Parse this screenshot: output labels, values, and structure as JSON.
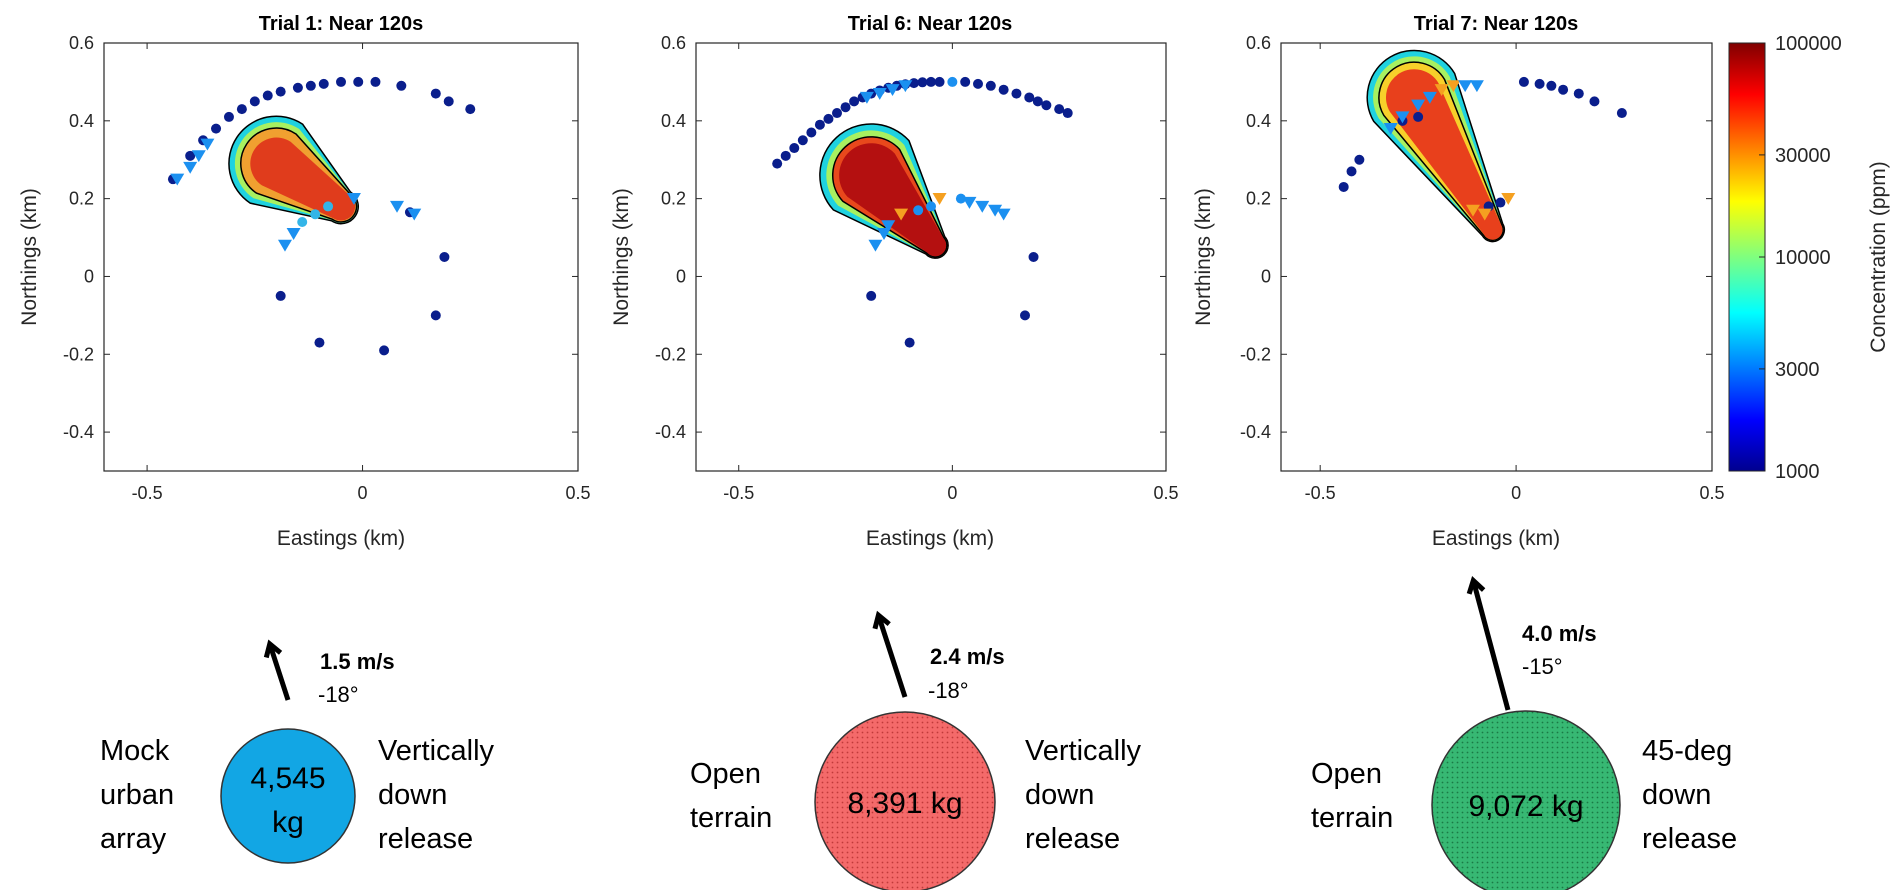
{
  "chart_data": [
    {
      "type": "scatter",
      "title": "Trial 1: Near 120s",
      "xlabel": "Eastings (km)",
      "ylabel": "Northings (km)",
      "xlim": [
        -0.6,
        0.5
      ],
      "ylim": [
        -0.5,
        0.6
      ],
      "xticks": [
        "-0.5",
        "0",
        "0.5"
      ],
      "yticks": [
        "-0.4",
        "-0.2",
        "0",
        "0.2",
        "0.4",
        "0.6"
      ],
      "plume": {
        "source": [
          -0.05,
          0.18
        ],
        "tip": [
          -0.2,
          0.29
        ],
        "source_width": 0.04,
        "tip_width": 0.11,
        "core_shrink": 0.08,
        "core_color": "#e03c1c",
        "mid_color": "#f0a030"
      },
      "circles": [
        {
          "x": -0.44,
          "y": 0.25,
          "c": "#0a1e8c"
        },
        {
          "x": -0.4,
          "y": 0.31,
          "c": "#0a1e8c"
        },
        {
          "x": -0.37,
          "y": 0.35,
          "c": "#0a1e8c"
        },
        {
          "x": -0.34,
          "y": 0.38,
          "c": "#0a1e8c"
        },
        {
          "x": -0.31,
          "y": 0.41,
          "c": "#0a1e8c"
        },
        {
          "x": -0.28,
          "y": 0.43,
          "c": "#0a1e8c"
        },
        {
          "x": -0.25,
          "y": 0.45,
          "c": "#0a1e8c"
        },
        {
          "x": -0.22,
          "y": 0.465,
          "c": "#0a1e8c"
        },
        {
          "x": -0.19,
          "y": 0.475,
          "c": "#0a1e8c"
        },
        {
          "x": -0.15,
          "y": 0.485,
          "c": "#0a1e8c"
        },
        {
          "x": -0.12,
          "y": 0.49,
          "c": "#0a1e8c"
        },
        {
          "x": -0.09,
          "y": 0.495,
          "c": "#0a1e8c"
        },
        {
          "x": -0.05,
          "y": 0.5,
          "c": "#0a1e8c"
        },
        {
          "x": -0.01,
          "y": 0.5,
          "c": "#0a1e8c"
        },
        {
          "x": 0.03,
          "y": 0.5,
          "c": "#0a1e8c"
        },
        {
          "x": 0.09,
          "y": 0.49,
          "c": "#0a1e8c"
        },
        {
          "x": 0.17,
          "y": 0.47,
          "c": "#0a1e8c"
        },
        {
          "x": 0.2,
          "y": 0.45,
          "c": "#0a1e8c"
        },
        {
          "x": 0.25,
          "y": 0.43,
          "c": "#0a1e8c"
        },
        {
          "x": 0.11,
          "y": 0.165,
          "c": "#0a1e8c"
        },
        {
          "x": 0.19,
          "y": 0.05,
          "c": "#0a1e8c"
        },
        {
          "x": 0.17,
          "y": -0.1,
          "c": "#0a1e8c"
        },
        {
          "x": 0.05,
          "y": -0.19,
          "c": "#0a1e8c"
        },
        {
          "x": -0.1,
          "y": -0.17,
          "c": "#0a1e8c"
        },
        {
          "x": -0.19,
          "y": -0.05,
          "c": "#0a1e8c"
        },
        {
          "x": -0.14,
          "y": 0.14,
          "c": "#33b5e8"
        },
        {
          "x": -0.11,
          "y": 0.16,
          "c": "#33b5e8"
        },
        {
          "x": -0.08,
          "y": 0.18,
          "c": "#33b5e8"
        }
      ],
      "triangles": [
        {
          "x": -0.43,
          "y": 0.25,
          "c": "#1b90f0"
        },
        {
          "x": -0.4,
          "y": 0.28,
          "c": "#1b90f0"
        },
        {
          "x": -0.38,
          "y": 0.31,
          "c": "#1b90f0"
        },
        {
          "x": -0.36,
          "y": 0.34,
          "c": "#1b90f0"
        },
        {
          "x": -0.18,
          "y": 0.08,
          "c": "#1b90f0"
        },
        {
          "x": -0.16,
          "y": 0.11,
          "c": "#1b90f0"
        },
        {
          "x": -0.02,
          "y": 0.2,
          "c": "#1b90f0"
        },
        {
          "x": 0.08,
          "y": 0.18,
          "c": "#1b90f0"
        },
        {
          "x": 0.12,
          "y": 0.16,
          "c": "#1b90f0"
        }
      ]
    },
    {
      "type": "scatter",
      "title": "Trial 6: Near 120s",
      "xlabel": "Eastings (km)",
      "ylabel": "Northings (km)",
      "xlim": [
        -0.6,
        0.5
      ],
      "ylim": [
        -0.5,
        0.6
      ],
      "xticks": [
        "-0.5",
        "0",
        "0.5"
      ],
      "yticks": [
        "-0.4",
        "-0.2",
        "0",
        "0.2",
        "0.4",
        "0.6"
      ],
      "plume": {
        "source": [
          -0.04,
          0.08
        ],
        "tip": [
          -0.19,
          0.26
        ],
        "source_width": 0.03,
        "tip_width": 0.12,
        "core_shrink": 0.05,
        "core_color": "#b41010",
        "mid_color": "#e8481c"
      },
      "circles": [
        {
          "x": -0.41,
          "y": 0.29,
          "c": "#0a1e8c"
        },
        {
          "x": -0.39,
          "y": 0.31,
          "c": "#0a1e8c"
        },
        {
          "x": -0.37,
          "y": 0.33,
          "c": "#0a1e8c"
        },
        {
          "x": -0.35,
          "y": 0.35,
          "c": "#0a1e8c"
        },
        {
          "x": -0.33,
          "y": 0.37,
          "c": "#0a1e8c"
        },
        {
          "x": -0.31,
          "y": 0.39,
          "c": "#0a1e8c"
        },
        {
          "x": -0.29,
          "y": 0.405,
          "c": "#0a1e8c"
        },
        {
          "x": -0.27,
          "y": 0.42,
          "c": "#0a1e8c"
        },
        {
          "x": -0.25,
          "y": 0.435,
          "c": "#0a1e8c"
        },
        {
          "x": -0.23,
          "y": 0.45,
          "c": "#0a1e8c"
        },
        {
          "x": -0.21,
          "y": 0.46,
          "c": "#0a1e8c"
        },
        {
          "x": -0.19,
          "y": 0.47,
          "c": "#0a1e8c"
        },
        {
          "x": -0.17,
          "y": 0.478,
          "c": "#0a1e8c"
        },
        {
          "x": -0.15,
          "y": 0.485,
          "c": "#0a1e8c"
        },
        {
          "x": -0.13,
          "y": 0.49,
          "c": "#0a1e8c"
        },
        {
          "x": -0.11,
          "y": 0.494,
          "c": "#0a1e8c"
        },
        {
          "x": -0.09,
          "y": 0.497,
          "c": "#0a1e8c"
        },
        {
          "x": -0.07,
          "y": 0.499,
          "c": "#0a1e8c"
        },
        {
          "x": -0.05,
          "y": 0.5,
          "c": "#0a1e8c"
        },
        {
          "x": -0.03,
          "y": 0.5,
          "c": "#0a1e8c"
        },
        {
          "x": 0.0,
          "y": 0.5,
          "c": "#1b90f0"
        },
        {
          "x": 0.03,
          "y": 0.5,
          "c": "#0a1e8c"
        },
        {
          "x": 0.06,
          "y": 0.495,
          "c": "#0a1e8c"
        },
        {
          "x": 0.09,
          "y": 0.49,
          "c": "#0a1e8c"
        },
        {
          "x": 0.12,
          "y": 0.48,
          "c": "#0a1e8c"
        },
        {
          "x": 0.15,
          "y": 0.47,
          "c": "#0a1e8c"
        },
        {
          "x": 0.18,
          "y": 0.46,
          "c": "#0a1e8c"
        },
        {
          "x": 0.2,
          "y": 0.45,
          "c": "#0a1e8c"
        },
        {
          "x": 0.22,
          "y": 0.44,
          "c": "#0a1e8c"
        },
        {
          "x": 0.25,
          "y": 0.43,
          "c": "#0a1e8c"
        },
        {
          "x": 0.27,
          "y": 0.42,
          "c": "#0a1e8c"
        },
        {
          "x": 0.19,
          "y": 0.05,
          "c": "#0a1e8c"
        },
        {
          "x": 0.17,
          "y": -0.1,
          "c": "#0a1e8c"
        },
        {
          "x": -0.1,
          "y": -0.17,
          "c": "#0a1e8c"
        },
        {
          "x": -0.19,
          "y": -0.05,
          "c": "#0a1e8c"
        },
        {
          "x": 0.02,
          "y": 0.2,
          "c": "#1b90f0"
        },
        {
          "x": -0.05,
          "y": 0.18,
          "c": "#1b90f0"
        },
        {
          "x": -0.08,
          "y": 0.17,
          "c": "#1b90f0"
        }
      ],
      "triangles": [
        {
          "x": -0.2,
          "y": 0.46,
          "c": "#1b90f0"
        },
        {
          "x": -0.17,
          "y": 0.47,
          "c": "#1b90f0"
        },
        {
          "x": -0.14,
          "y": 0.48,
          "c": "#1b90f0"
        },
        {
          "x": -0.11,
          "y": 0.49,
          "c": "#1b90f0"
        },
        {
          "x": -0.03,
          "y": 0.2,
          "c": "#f5a020"
        },
        {
          "x": -0.12,
          "y": 0.16,
          "c": "#f5a020"
        },
        {
          "x": 0.04,
          "y": 0.19,
          "c": "#1b90f0"
        },
        {
          "x": 0.07,
          "y": 0.18,
          "c": "#1b90f0"
        },
        {
          "x": 0.1,
          "y": 0.17,
          "c": "#1b90f0"
        },
        {
          "x": 0.12,
          "y": 0.16,
          "c": "#1b90f0"
        },
        {
          "x": -0.18,
          "y": 0.08,
          "c": "#1b90f0"
        },
        {
          "x": -0.16,
          "y": 0.11,
          "c": "#1b90f0"
        },
        {
          "x": -0.15,
          "y": 0.13,
          "c": "#1b90f0"
        }
      ]
    },
    {
      "type": "scatter",
      "title": "Trial 7: Near 120s",
      "xlabel": "Eastings (km)",
      "ylabel": "Northings (km)",
      "xlim": [
        -0.6,
        0.5
      ],
      "ylim": [
        -0.5,
        0.6
      ],
      "xticks": [
        "-0.5",
        "0",
        "0.5"
      ],
      "yticks": [
        "-0.4",
        "-0.2",
        "0",
        "0.2",
        "0.4",
        "0.6"
      ],
      "plume": {
        "source": [
          -0.06,
          0.12
        ],
        "tip": [
          -0.26,
          0.46
        ],
        "source_width": 0.03,
        "tip_width": 0.12,
        "core_shrink": 0.06,
        "core_color": "#e8401c",
        "mid_color": "#f7d02a"
      },
      "circles": [
        {
          "x": -0.44,
          "y": 0.23,
          "c": "#0a1e8c"
        },
        {
          "x": -0.42,
          "y": 0.27,
          "c": "#0a1e8c"
        },
        {
          "x": -0.4,
          "y": 0.3,
          "c": "#0a1e8c"
        },
        {
          "x": -0.29,
          "y": 0.4,
          "c": "#0a1e8c"
        },
        {
          "x": -0.25,
          "y": 0.41,
          "c": "#0a1e8c"
        },
        {
          "x": 0.02,
          "y": 0.5,
          "c": "#0a1e8c"
        },
        {
          "x": 0.06,
          "y": 0.495,
          "c": "#0a1e8c"
        },
        {
          "x": 0.09,
          "y": 0.49,
          "c": "#0a1e8c"
        },
        {
          "x": 0.12,
          "y": 0.48,
          "c": "#0a1e8c"
        },
        {
          "x": 0.16,
          "y": 0.47,
          "c": "#0a1e8c"
        },
        {
          "x": 0.2,
          "y": 0.45,
          "c": "#0a1e8c"
        },
        {
          "x": 0.27,
          "y": 0.42,
          "c": "#0a1e8c"
        },
        {
          "x": -0.07,
          "y": 0.18,
          "c": "#0a1e8c"
        },
        {
          "x": -0.04,
          "y": 0.19,
          "c": "#0a1e8c"
        }
      ],
      "triangles": [
        {
          "x": -0.32,
          "y": 0.38,
          "c": "#1b90f0"
        },
        {
          "x": -0.29,
          "y": 0.41,
          "c": "#1b90f0"
        },
        {
          "x": -0.25,
          "y": 0.44,
          "c": "#1b90f0"
        },
        {
          "x": -0.22,
          "y": 0.46,
          "c": "#1b90f0"
        },
        {
          "x": -0.19,
          "y": 0.48,
          "c": "#f5a020"
        },
        {
          "x": -0.16,
          "y": 0.49,
          "c": "#f5a020"
        },
        {
          "x": -0.13,
          "y": 0.49,
          "c": "#1b90f0"
        },
        {
          "x": -0.1,
          "y": 0.49,
          "c": "#1b90f0"
        },
        {
          "x": -0.11,
          "y": 0.17,
          "c": "#f5a020"
        },
        {
          "x": -0.08,
          "y": 0.16,
          "c": "#f5a020"
        },
        {
          "x": -0.02,
          "y": 0.2,
          "c": "#f5a020"
        }
      ]
    }
  ],
  "colorbar": {
    "label": "Concentration (ppm)",
    "ticks": [
      "100000",
      "30000",
      "10000",
      "3000",
      "1000"
    ],
    "tick_values": [
      100000,
      30000,
      10000,
      3000,
      1000
    ],
    "range": [
      1000,
      100000
    ],
    "scale": "log",
    "colormap": "jet"
  },
  "cases": [
    {
      "speed": "1.5 m/s",
      "direction": "-18°",
      "direction_deg": -18,
      "speed_value": 1.5,
      "left_lines": [
        "Mock",
        "urban",
        "array"
      ],
      "mass_lines": [
        "4,545",
        "kg"
      ],
      "right_lines": [
        "Vertically",
        "down",
        "release"
      ],
      "color": "#12a6e4",
      "hatched": false
    },
    {
      "speed": "2.4 m/s",
      "direction": "-18°",
      "direction_deg": -18,
      "speed_value": 2.4,
      "left_lines": [
        "Open",
        "terrain"
      ],
      "mass_lines": [
        "8,391 kg"
      ],
      "right_lines": [
        "Vertically",
        "down",
        "release"
      ],
      "color": "#f46a6a",
      "hatched": true
    },
    {
      "speed": "4.0 m/s",
      "direction": "-15°",
      "direction_deg": -15,
      "speed_value": 4.0,
      "left_lines": [
        "Open",
        "terrain"
      ],
      "mass_lines": [
        "9,072 kg"
      ],
      "right_lines": [
        "45-deg",
        "down",
        "release"
      ],
      "color": "#31b36e",
      "hatched": true
    }
  ]
}
